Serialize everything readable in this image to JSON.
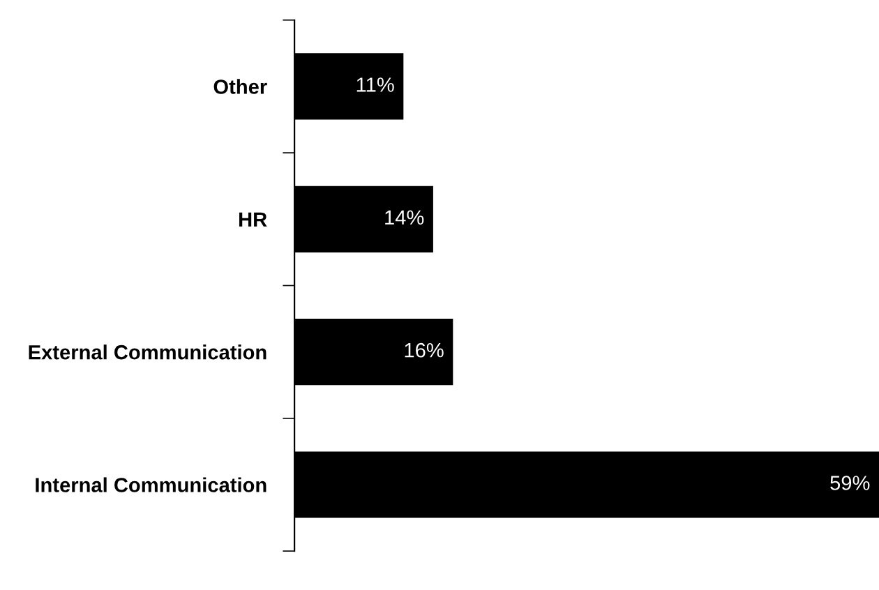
{
  "chart_data": {
    "type": "bar",
    "orientation": "horizontal",
    "categories": [
      "Other",
      "HR",
      "External Communication",
      "Internal Communication"
    ],
    "values": [
      11,
      14,
      16,
      59
    ],
    "value_labels": [
      "11%",
      "14%",
      "16%",
      "59%"
    ],
    "color": "#000000",
    "grid": false,
    "legend": false
  }
}
